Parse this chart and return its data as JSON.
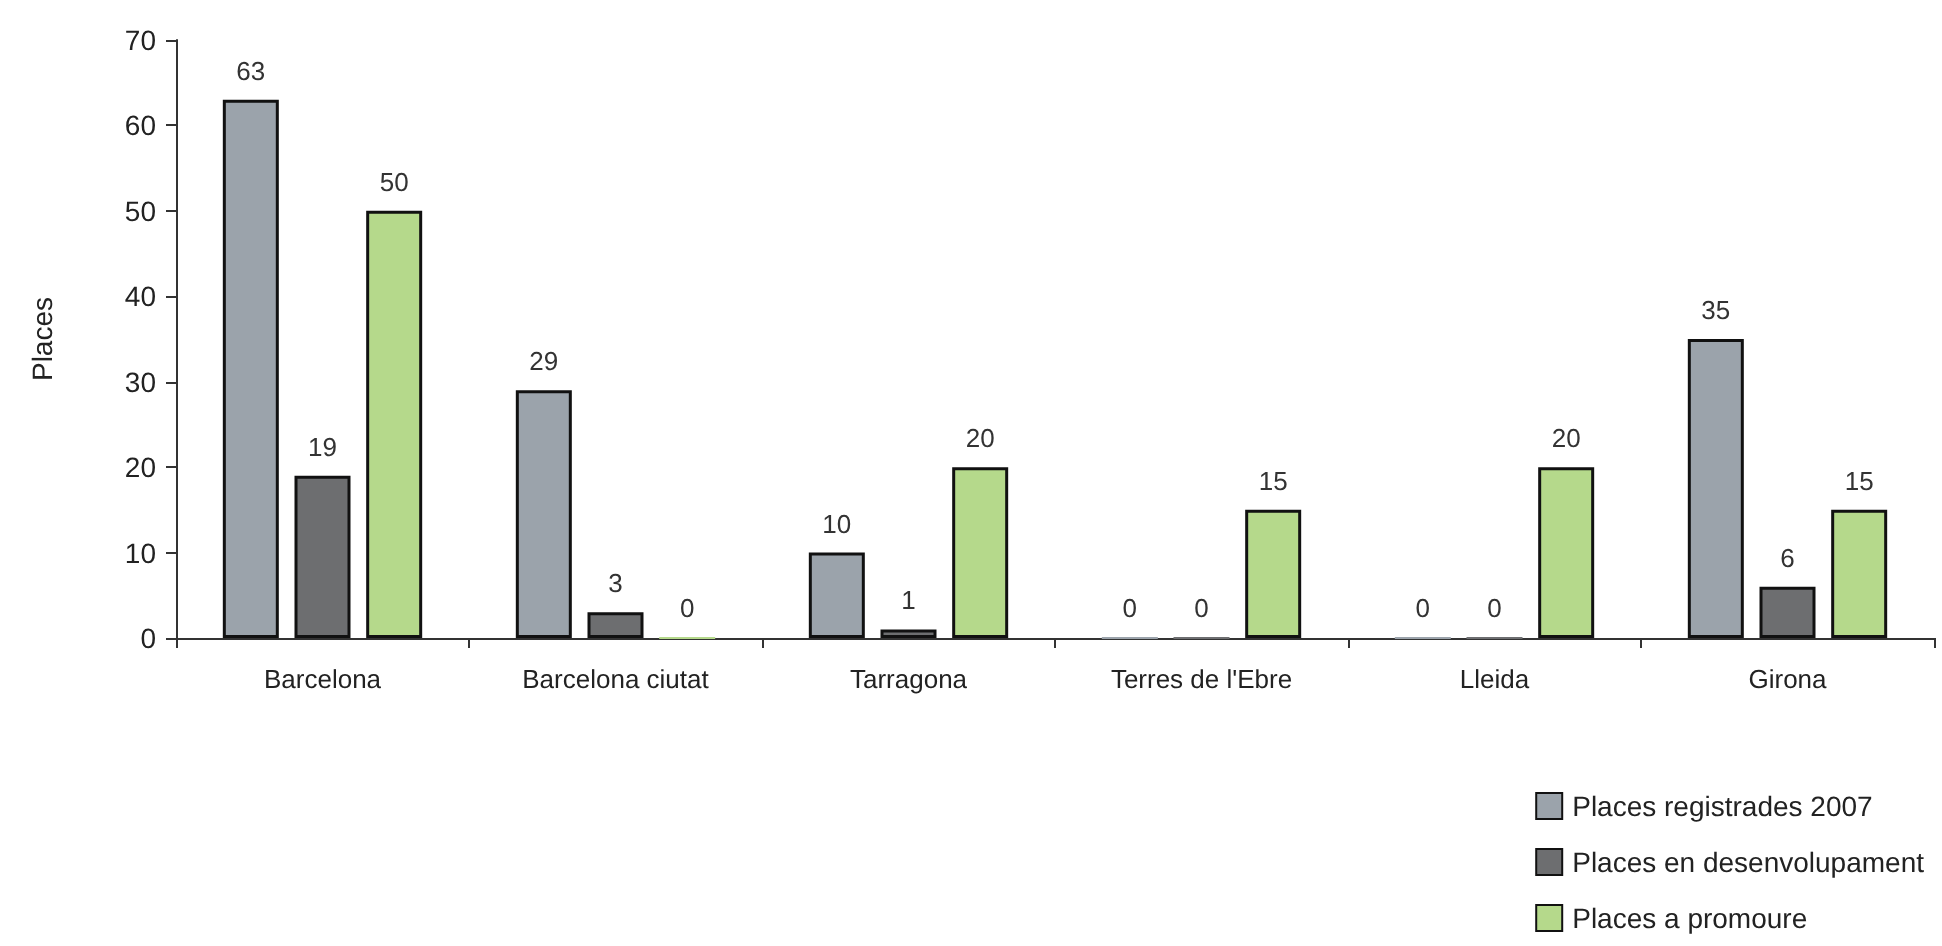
{
  "chart_data": {
    "type": "bar",
    "ylabel": "Places",
    "categories": [
      "Barcelona",
      "Barcelona ciutat",
      "Tarragona",
      "Terres de l'Ebre",
      "Lleida",
      "Girona"
    ],
    "series": [
      {
        "name": "Places registrades 2007",
        "color": "#9ba3ab",
        "values": [
          63,
          29,
          10,
          0,
          0,
          35
        ]
      },
      {
        "name": "Places en desenvolupament",
        "color": "#6d6e70",
        "values": [
          19,
          3,
          1,
          0,
          0,
          6
        ]
      },
      {
        "name": "Places a promoure",
        "color": "#b5d98b",
        "values": [
          50,
          0,
          20,
          15,
          20,
          15
        ]
      }
    ],
    "ylim": [
      0,
      70
    ],
    "yticks": [
      0,
      10,
      20,
      30,
      40,
      50,
      60,
      70
    ],
    "data_labels": true,
    "grid": false,
    "legend": "bottom right"
  }
}
